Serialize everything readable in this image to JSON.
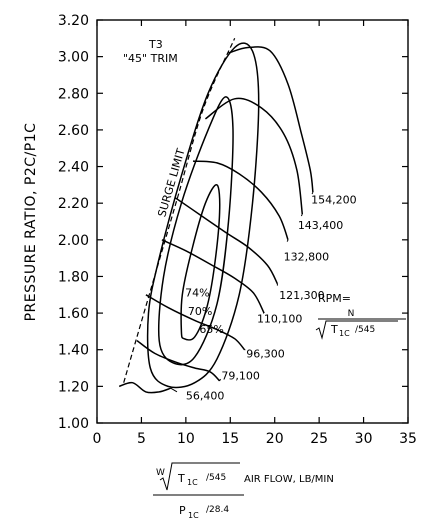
{
  "chart_data": {
    "type": "line",
    "title": "T3",
    "subtitle": "\"45\" TRIM",
    "ylabel": "PRESSURE RATIO, P2C/P1C",
    "xlabel": {
      "numerator_prefix": "W",
      "numerator_sqrt": "T",
      "numerator_sub": "1C",
      "numerator_div": "/545",
      "suffix": "AIR FLOW, LB/MIN",
      "denominator": "P",
      "denominator_sub": "1C",
      "denominator_div": "/28.4"
    },
    "xlim": [
      0,
      35
    ],
    "ylim": [
      1.0,
      3.2
    ],
    "xticks": [
      "0",
      "5",
      "10",
      "15",
      "20",
      "25",
      "30",
      "35"
    ],
    "yticks": [
      "1.00",
      "1.20",
      "1.40",
      "1.60",
      "1.80",
      "2.00",
      "2.20",
      "2.40",
      "2.60",
      "2.80",
      "3.00",
      "3.20"
    ],
    "surge_limit": {
      "label": "SURGE LIMIT",
      "points": [
        [
          3.0,
          1.22
        ],
        [
          6.0,
          1.72
        ],
        [
          9.0,
          2.22
        ],
        [
          12.0,
          2.72
        ],
        [
          15.5,
          3.1
        ]
      ]
    },
    "rpm_label": {
      "text": "RPM=",
      "numerator": "N",
      "sqrt": "T",
      "sub": "1C",
      "div": "/545"
    },
    "speed_lines": [
      {
        "label": "56,400",
        "points": [
          [
            2.5,
            1.2
          ],
          [
            4.0,
            1.22
          ],
          [
            5.5,
            1.17
          ],
          [
            7.0,
            1.17
          ],
          [
            8.3,
            1.19
          ]
        ]
      },
      {
        "label": "79,100",
        "points": [
          [
            4.5,
            1.45
          ],
          [
            6.5,
            1.38
          ],
          [
            9.0,
            1.33
          ],
          [
            11.0,
            1.3
          ],
          [
            12.7,
            1.28
          ],
          [
            13.8,
            1.23
          ]
        ]
      },
      {
        "label": "96,300",
        "points": [
          [
            5.5,
            1.7
          ],
          [
            8.0,
            1.63
          ],
          [
            11.0,
            1.56
          ],
          [
            13.5,
            1.51
          ],
          [
            15.5,
            1.46
          ],
          [
            16.6,
            1.4
          ]
        ]
      },
      {
        "label": "110,100",
        "points": [
          [
            7.3,
            2.0
          ],
          [
            10.0,
            1.94
          ],
          [
            13.0,
            1.86
          ],
          [
            15.5,
            1.79
          ],
          [
            17.6,
            1.71
          ],
          [
            18.8,
            1.6
          ]
        ]
      },
      {
        "label": "121,300",
        "points": [
          [
            8.8,
            2.23
          ],
          [
            11.5,
            2.14
          ],
          [
            14.5,
            2.04
          ],
          [
            17.0,
            1.96
          ],
          [
            19.2,
            1.86
          ],
          [
            20.3,
            1.76
          ]
        ]
      },
      {
        "label": "132,800",
        "points": [
          [
            10.8,
            2.43
          ],
          [
            13.5,
            2.42
          ],
          [
            16.0,
            2.36
          ],
          [
            18.5,
            2.26
          ],
          [
            20.5,
            2.13
          ],
          [
            21.5,
            2.0
          ]
        ]
      },
      {
        "label": "143,400",
        "points": [
          [
            12.2,
            2.66
          ],
          [
            15.5,
            2.77
          ],
          [
            18.5,
            2.72
          ],
          [
            21.0,
            2.58
          ],
          [
            22.5,
            2.38
          ],
          [
            23.1,
            2.14
          ]
        ]
      },
      {
        "label": "154,200",
        "points": [
          [
            14.8,
            3.02
          ],
          [
            17.0,
            3.05
          ],
          [
            19.5,
            3.03
          ],
          [
            21.5,
            2.85
          ],
          [
            23.0,
            2.58
          ],
          [
            24.0,
            2.38
          ],
          [
            24.3,
            2.26
          ]
        ]
      }
    ],
    "efficiency_islands": [
      {
        "label": "74%",
        "points": [
          [
            9.5,
            1.5
          ],
          [
            9.6,
            1.7
          ],
          [
            10.7,
            1.95
          ],
          [
            12.2,
            2.2
          ],
          [
            13.5,
            2.3
          ],
          [
            13.8,
            2.15
          ],
          [
            13.2,
            1.85
          ],
          [
            12.3,
            1.62
          ],
          [
            11.0,
            1.47
          ],
          [
            9.8,
            1.46
          ]
        ]
      },
      {
        "label": "70%",
        "points": [
          [
            7.0,
            1.45
          ],
          [
            7.5,
            1.8
          ],
          [
            9.5,
            2.2
          ],
          [
            12.5,
            2.6
          ],
          [
            14.5,
            2.78
          ],
          [
            15.3,
            2.6
          ],
          [
            14.8,
            2.1
          ],
          [
            13.5,
            1.65
          ],
          [
            11.0,
            1.36
          ],
          [
            8.5,
            1.33
          ]
        ]
      },
      {
        "label": "65%",
        "points": [
          [
            6.0,
            1.3
          ],
          [
            5.8,
            1.6
          ],
          [
            7.0,
            1.9
          ],
          [
            9.5,
            2.35
          ],
          [
            12.5,
            2.8
          ],
          [
            15.5,
            3.05
          ],
          [
            17.5,
            3.03
          ],
          [
            18.2,
            2.75
          ],
          [
            17.5,
            2.2
          ],
          [
            16.0,
            1.7
          ],
          [
            13.5,
            1.35
          ],
          [
            11.0,
            1.22
          ],
          [
            8.0,
            1.2
          ]
        ]
      }
    ]
  }
}
